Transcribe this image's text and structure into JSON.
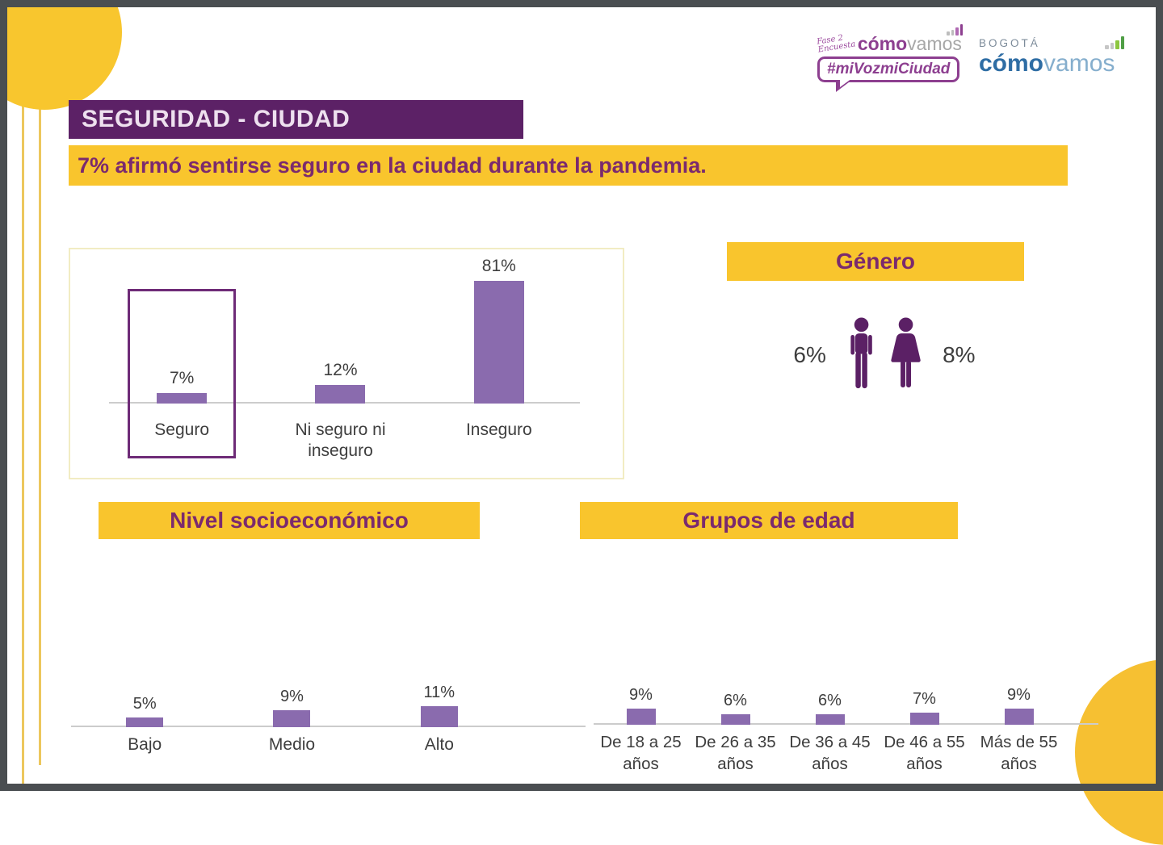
{
  "page": {
    "title_banner": "SEGURIDAD - CIUDAD",
    "subtitle_banner": "7% afirmó sentirse seguro en la ciudad durante la pandemia."
  },
  "logos": {
    "mivoz": {
      "script_line1": "Fase 2",
      "script_line2": "Encuesta",
      "brand_bold": "cómo",
      "brand_light": "vamos",
      "hashtag": "#miVozmiCiudad"
    },
    "bogota": {
      "city": "BOGOTÁ",
      "brand_bold": "cómo",
      "brand_light": "vamos"
    }
  },
  "colors": {
    "yellow_banner": "#F9C52D",
    "yellow_circle": "#F8C62E",
    "purple_header_bg": "#5C2166",
    "purple_heading_text": "#7B2A6E",
    "bar_purple": "#8A6BAE",
    "highlight_border": "#6E2B77",
    "person_icon_purple": "#5B2065",
    "axis_gray": "#CCCCCC",
    "label_gray": "#3E3E3E",
    "frame_gray": "#4A4E51"
  },
  "chart_data": [
    {
      "id": "seguridad",
      "type": "bar",
      "title": "7% afirmó sentirse seguro en la ciudad durante la pandemia.",
      "categories": [
        "Seguro",
        "Ni seguro ni\ninseguro",
        "Inseguro"
      ],
      "values": [
        7,
        12,
        81
      ],
      "value_labels": [
        "7%",
        "12%",
        "81%"
      ],
      "highlight_category": "Seguro",
      "ylim": [
        0,
        100
      ],
      "grid": false,
      "axis": "baseline-only"
    },
    {
      "id": "nivel-socioeconomico",
      "type": "bar",
      "title": "Nivel socioeconómico",
      "categories": [
        "Bajo",
        "Medio",
        "Alto"
      ],
      "values": [
        5,
        9,
        11
      ],
      "value_labels": [
        "5%",
        "9%",
        "11%"
      ],
      "ylim": [
        0,
        100
      ],
      "grid": false,
      "axis": "baseline-only"
    },
    {
      "id": "grupos-edad",
      "type": "bar",
      "title": "Grupos de edad",
      "categories": [
        "De 18 a 25\naños",
        "De 26 a 35\naños",
        "De 36 a 45\naños",
        "De 46 a 55\naños",
        "Más de 55\naños"
      ],
      "values": [
        9,
        6,
        6,
        7,
        9
      ],
      "value_labels": [
        "9%",
        "6%",
        "6%",
        "7%",
        "9%"
      ],
      "ylim": [
        0,
        100
      ],
      "grid": false,
      "axis": "baseline-only"
    },
    {
      "id": "genero",
      "type": "pictogram",
      "title": "Género",
      "categories": [
        "Hombres",
        "Mujeres"
      ],
      "values": [
        6,
        8
      ],
      "value_labels": [
        "6%",
        "8%"
      ]
    }
  ]
}
